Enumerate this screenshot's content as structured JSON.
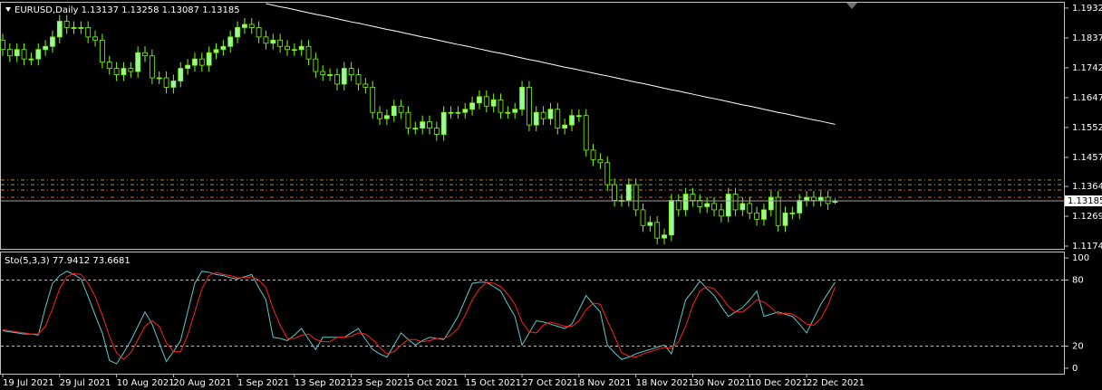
{
  "chart_data": [
    {
      "type": "candlestick",
      "title": "EURUSD,Daily  1.13137 1.13258 1.13087 1.13185",
      "categories": [
        "19 Jul 2021",
        null,
        null,
        null,
        null,
        null,
        null,
        null,
        "29 Jul 2021",
        null,
        null,
        null,
        null,
        null,
        null,
        null,
        "10 Aug 2021",
        null,
        null,
        null,
        null,
        null,
        null,
        null,
        "20 Aug 2021",
        null,
        null,
        null,
        null,
        null,
        null,
        null,
        null,
        "1 Sep 2021",
        null,
        null,
        null,
        null,
        null,
        null,
        null,
        "13 Sep 2021",
        null,
        null,
        null,
        null,
        null,
        null,
        null,
        "23 Sep 2021",
        null,
        null,
        null,
        null,
        null,
        null,
        null,
        "5 Oct 2021",
        null,
        null,
        null,
        null,
        null,
        null,
        null,
        "15 Oct 2021",
        null,
        null,
        null,
        null,
        null,
        null,
        null,
        "27 Oct 2021",
        null,
        null,
        null,
        null,
        null,
        null,
        null,
        "8 Nov 2021",
        null,
        null,
        null,
        null,
        null,
        null,
        null,
        "18 Nov 2021",
        null,
        null,
        null,
        null,
        null,
        null,
        null,
        "30 Nov 2021",
        null,
        null,
        null,
        null,
        null,
        null,
        null,
        "10 Dec 2021",
        null,
        null,
        null,
        null,
        null,
        null,
        null,
        "22 Dec 2021",
        null,
        null,
        null,
        null
      ],
      "open": [
        1.183,
        1.18,
        1.178,
        1.18,
        1.177,
        1.177,
        1.18,
        1.181,
        1.184,
        1.189,
        1.187,
        1.187,
        1.187,
        1.184,
        1.183,
        1.176,
        1.174,
        1.172,
        1.174,
        1.173,
        1.179,
        1.178,
        1.171,
        1.171,
        1.168,
        1.17,
        1.174,
        1.175,
        1.177,
        1.175,
        1.179,
        1.18,
        1.181,
        1.184,
        1.187,
        1.188,
        1.187,
        1.184,
        1.182,
        1.183,
        1.181,
        1.18,
        1.18,
        1.181,
        1.177,
        1.173,
        1.172,
        1.172,
        1.169,
        1.174,
        1.172,
        1.169,
        1.168,
        1.16,
        1.158,
        1.159,
        1.162,
        1.16,
        1.155,
        1.155,
        1.157,
        1.155,
        1.153,
        1.16,
        1.16,
        1.16,
        1.161,
        1.163,
        1.165,
        1.162,
        1.164,
        1.16,
        1.16,
        1.161,
        1.168,
        1.156,
        1.16,
        1.158,
        1.161,
        1.155,
        1.156,
        1.159,
        1.159,
        1.148,
        1.145,
        1.144,
        1.137,
        1.132,
        1.132,
        1.137,
        1.129,
        1.124,
        1.125,
        1.12,
        1.121,
        1.132,
        1.129,
        1.134,
        1.132,
        1.13,
        1.131,
        1.129,
        1.127,
        1.134,
        1.129,
        1.131,
        1.128,
        1.126,
        1.129,
        1.133,
        1.124,
        1.128,
        1.128,
        1.132,
        1.133,
        1.132,
        1.133,
        1.13137
      ],
      "high": [
        1.185,
        1.182,
        1.182,
        1.182,
        1.179,
        1.182,
        1.183,
        1.186,
        1.191,
        1.191,
        1.189,
        1.189,
        1.189,
        1.186,
        1.185,
        1.178,
        1.176,
        1.176,
        1.176,
        1.181,
        1.181,
        1.18,
        1.173,
        1.173,
        1.172,
        1.176,
        1.177,
        1.179,
        1.179,
        1.181,
        1.182,
        1.183,
        1.186,
        1.189,
        1.19,
        1.19,
        1.189,
        1.186,
        1.185,
        1.185,
        1.183,
        1.182,
        1.183,
        1.183,
        1.179,
        1.175,
        1.174,
        1.174,
        1.176,
        1.176,
        1.174,
        1.171,
        1.17,
        1.162,
        1.161,
        1.164,
        1.164,
        1.162,
        1.157,
        1.159,
        1.159,
        1.157,
        1.162,
        1.162,
        1.162,
        1.163,
        1.165,
        1.167,
        1.167,
        1.166,
        1.166,
        1.162,
        1.163,
        1.17,
        1.17,
        1.162,
        1.162,
        1.163,
        1.163,
        1.158,
        1.161,
        1.161,
        1.161,
        1.15,
        1.147,
        1.146,
        1.139,
        1.134,
        1.139,
        1.139,
        1.131,
        1.127,
        1.127,
        1.123,
        1.134,
        1.134,
        1.136,
        1.136,
        1.134,
        1.133,
        1.133,
        1.131,
        1.136,
        1.136,
        1.133,
        1.133,
        1.13,
        1.131,
        1.135,
        1.135,
        1.13,
        1.13,
        1.134,
        1.135,
        1.135,
        1.135,
        1.135,
        1.13258
      ],
      "low": [
        1.178,
        1.176,
        1.176,
        1.175,
        1.175,
        1.175,
        1.178,
        1.179,
        1.182,
        1.185,
        1.185,
        1.185,
        1.182,
        1.181,
        1.174,
        1.172,
        1.17,
        1.17,
        1.171,
        1.171,
        1.176,
        1.169,
        1.169,
        1.166,
        1.166,
        1.168,
        1.172,
        1.173,
        1.173,
        1.173,
        1.177,
        1.178,
        1.179,
        1.182,
        1.185,
        1.185,
        1.182,
        1.18,
        1.18,
        1.179,
        1.178,
        1.178,
        1.178,
        1.175,
        1.171,
        1.17,
        1.17,
        1.167,
        1.167,
        1.17,
        1.167,
        1.166,
        1.158,
        1.156,
        1.156,
        1.157,
        1.158,
        1.153,
        1.153,
        1.153,
        1.153,
        1.151,
        1.151,
        1.158,
        1.158,
        1.158,
        1.159,
        1.161,
        1.16,
        1.16,
        1.158,
        1.158,
        1.158,
        1.159,
        1.154,
        1.154,
        1.156,
        1.156,
        1.153,
        1.153,
        1.154,
        1.157,
        1.146,
        1.143,
        1.142,
        1.135,
        1.13,
        1.13,
        1.13,
        1.127,
        1.122,
        1.122,
        1.118,
        1.118,
        1.119,
        1.127,
        1.127,
        1.13,
        1.128,
        1.128,
        1.127,
        1.125,
        1.125,
        1.127,
        1.127,
        1.126,
        1.124,
        1.124,
        1.127,
        1.122,
        1.122,
        1.126,
        1.126,
        1.13,
        1.13,
        1.13,
        1.129,
        1.13087
      ],
      "close": [
        1.18,
        1.178,
        1.18,
        1.177,
        1.177,
        1.18,
        1.181,
        1.184,
        1.189,
        1.187,
        1.187,
        1.187,
        1.184,
        1.183,
        1.176,
        1.174,
        1.172,
        1.174,
        1.173,
        1.179,
        1.178,
        1.171,
        1.171,
        1.168,
        1.17,
        1.174,
        1.175,
        1.177,
        1.175,
        1.179,
        1.18,
        1.181,
        1.184,
        1.187,
        1.188,
        1.187,
        1.184,
        1.182,
        1.183,
        1.181,
        1.18,
        1.18,
        1.181,
        1.177,
        1.173,
        1.172,
        1.172,
        1.169,
        1.174,
        1.172,
        1.169,
        1.168,
        1.16,
        1.158,
        1.159,
        1.162,
        1.16,
        1.155,
        1.155,
        1.157,
        1.155,
        1.153,
        1.16,
        1.16,
        1.16,
        1.161,
        1.163,
        1.165,
        1.162,
        1.164,
        1.16,
        1.16,
        1.161,
        1.168,
        1.156,
        1.16,
        1.158,
        1.161,
        1.155,
        1.156,
        1.159,
        1.159,
        1.148,
        1.145,
        1.144,
        1.137,
        1.132,
        1.132,
        1.137,
        1.129,
        1.124,
        1.125,
        1.12,
        1.121,
        1.132,
        1.129,
        1.134,
        1.132,
        1.13,
        1.131,
        1.129,
        1.127,
        1.134,
        1.129,
        1.131,
        1.128,
        1.126,
        1.129,
        1.133,
        1.124,
        1.128,
        1.128,
        1.132,
        1.133,
        1.132,
        1.133,
        1.131,
        1.13185
      ],
      "up_color": "#98fb98",
      "down_color": "#000000",
      "wick_color": "#7cfc00",
      "overlays": [
        {
          "color": "#ffffff",
          "values": [
            null,
            null,
            null,
            null,
            null,
            null,
            null,
            null,
            null,
            null,
            null,
            null,
            null,
            null,
            null,
            null,
            null,
            null,
            null,
            null,
            null,
            null,
            null,
            null,
            null,
            null,
            null,
            null,
            null,
            null,
            null,
            null,
            null,
            null,
            null,
            null,
            null,
            1.1946,
            1.1941,
            1.1936,
            1.1932,
            1.1927,
            1.1922,
            1.1917,
            1.1912,
            1.1908,
            1.1903,
            1.1898,
            1.1893,
            1.1888,
            1.1884,
            1.1879,
            1.1874,
            1.1869,
            1.1864,
            1.186,
            1.1855,
            1.185,
            1.1845,
            1.184,
            1.1836,
            1.1831,
            1.1826,
            1.1821,
            1.1816,
            1.1812,
            1.1807,
            1.1802,
            1.1797,
            1.1792,
            1.1788,
            1.1783,
            1.1778,
            1.1773,
            1.1768,
            1.1764,
            1.1759,
            1.1754,
            1.1749,
            1.1744,
            1.174,
            1.1735,
            1.173,
            1.1725,
            1.172,
            1.1716,
            1.1711,
            1.1706,
            1.1701,
            1.1696,
            1.1692,
            1.1687,
            1.1682,
            1.1677,
            1.1672,
            1.1668,
            1.1663,
            1.1658,
            1.1653,
            1.1648,
            1.1644,
            1.1639,
            1.1634,
            1.1629,
            1.1624,
            1.162,
            1.1615,
            1.161,
            1.1605,
            1.16,
            1.1596,
            1.1591,
            1.1586,
            1.1581,
            1.1576,
            1.1572,
            1.1567,
            1.1562
          ]
        }
      ],
      "levels": [
        {
          "value": 1.1385,
          "color": "#c08040"
        },
        {
          "value": 1.137,
          "color": "#909090"
        },
        {
          "value": 1.1353,
          "color": "#c08040"
        },
        {
          "value": 1.133,
          "color": "#d2691e"
        }
      ],
      "current_price": {
        "value": 1.13185,
        "label": "1.13185"
      },
      "ylim": [
        1.1163,
        1.1949
      ],
      "yticks": [
        {
          "value": 1.1932,
          "label": "1.19320"
        },
        {
          "value": 1.1837,
          "label": "1.18370"
        },
        {
          "value": 1.1742,
          "label": "1.17420"
        },
        {
          "value": 1.1647,
          "label": "1.16470"
        },
        {
          "value": 1.1552,
          "label": "1.15520"
        },
        {
          "value": 1.1457,
          "label": "1.14570"
        },
        {
          "value": 1.13645,
          "label": "1.13645"
        },
        {
          "value": 1.12695,
          "label": "1.12695"
        },
        {
          "value": 1.11745,
          "label": "1.11745"
        }
      ]
    },
    {
      "type": "line",
      "title": "Sto(5,3,3) 77.9412 73.6681",
      "series": [
        {
          "color": "#5fc9c9",
          "values": [
            34,
            33,
            32,
            31,
            31,
            30,
            55,
            77,
            84,
            88,
            85,
            81,
            65,
            48,
            32,
            7,
            4,
            14,
            25,
            38,
            51,
            40,
            23,
            6,
            15,
            25,
            51,
            77,
            88,
            87,
            85,
            84,
            82,
            81,
            83,
            85,
            73,
            62,
            28,
            27,
            25,
            30,
            36,
            26,
            17,
            28,
            28,
            28,
            28,
            32,
            36,
            26,
            17,
            13,
            10,
            21,
            32,
            26,
            21,
            25,
            28,
            27,
            26,
            36,
            47,
            62,
            77,
            78,
            78,
            74,
            70,
            58,
            47,
            21,
            32,
            43,
            42,
            40,
            38,
            36,
            40,
            53,
            66,
            58,
            51,
            21,
            14,
            8,
            10,
            13,
            15,
            17,
            19,
            21,
            13,
            38,
            62,
            70,
            79,
            72,
            66,
            56,
            47,
            51,
            55,
            62,
            70,
            47,
            49,
            51,
            49,
            47,
            40,
            32,
            45,
            58,
            68,
            77.9412
          ]
        },
        {
          "color": "#ff2020",
          "values": [
            35,
            34,
            33,
            32,
            31,
            31,
            38,
            54,
            72,
            83,
            86,
            85,
            77,
            65,
            48,
            29,
            14,
            8,
            14,
            26,
            38,
            43,
            38,
            23,
            15,
            15,
            30,
            51,
            72,
            84,
            87,
            85,
            84,
            82,
            82,
            83,
            80,
            73,
            54,
            39,
            27,
            27,
            30,
            31,
            26,
            24,
            24,
            28,
            28,
            29,
            32,
            31,
            26,
            19,
            13,
            15,
            21,
            26,
            26,
            24,
            25,
            27,
            27,
            30,
            36,
            48,
            62,
            72,
            78,
            77,
            74,
            67,
            58,
            42,
            33,
            32,
            39,
            42,
            40,
            38,
            38,
            43,
            53,
            59,
            58,
            43,
            29,
            14,
            11,
            10,
            13,
            15,
            17,
            19,
            18,
            24,
            38,
            57,
            70,
            74,
            72,
            65,
            56,
            51,
            51,
            56,
            62,
            60,
            55,
            49,
            50,
            49,
            45,
            40,
            39,
            45,
            57,
            73.6681
          ]
        }
      ],
      "ylim": [
        -5,
        105
      ],
      "yticks": [
        100,
        80,
        20,
        0
      ]
    }
  ]
}
